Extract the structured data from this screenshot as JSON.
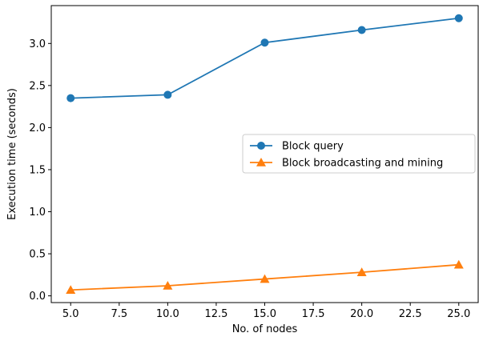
{
  "chart_data": {
    "type": "line",
    "title": "",
    "xlabel": "No. of nodes",
    "ylabel": "Execution time (seconds)",
    "x": [
      5,
      10,
      15,
      20,
      25
    ],
    "xlim": [
      4.0,
      26.0
    ],
    "ylim": [
      -0.08,
      3.45
    ],
    "xticks": [
      "5.0",
      "7.5",
      "10.0",
      "12.5",
      "15.0",
      "17.5",
      "20.0",
      "22.5",
      "25.0"
    ],
    "yticks": [
      "0.0",
      "0.5",
      "1.0",
      "1.5",
      "2.0",
      "2.5",
      "3.0"
    ],
    "grid": false,
    "legend_position": "center-right",
    "series": [
      {
        "name": "Block query",
        "marker": "circle",
        "color": "#1f77b4",
        "values": [
          2.35,
          2.39,
          3.01,
          3.16,
          3.3
        ]
      },
      {
        "name": "Block broadcasting and mining",
        "marker": "triangle",
        "color": "#ff7f0e",
        "values": [
          0.07,
          0.12,
          0.2,
          0.28,
          0.37
        ]
      }
    ]
  }
}
